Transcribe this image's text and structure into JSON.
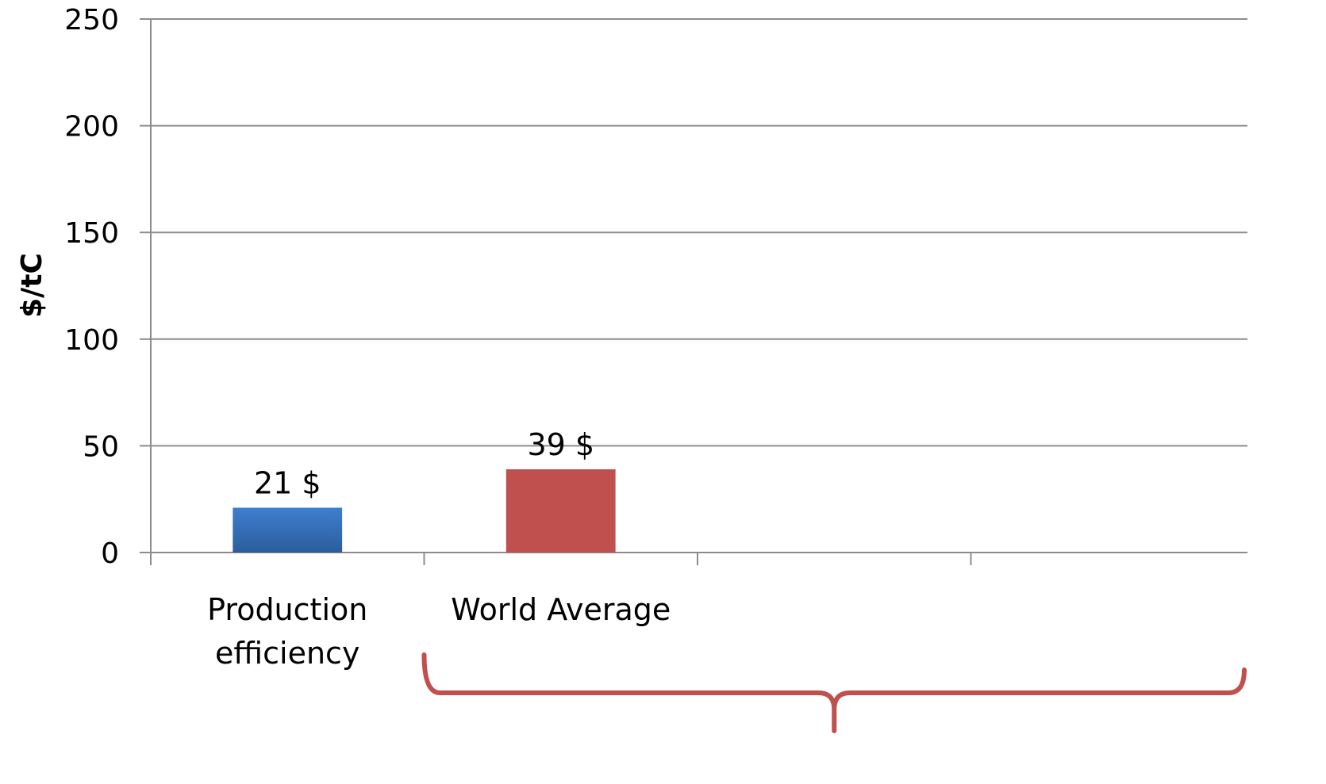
{
  "chart_data": {
    "type": "bar",
    "categories": [
      "Production efficiency",
      "World Average",
      "",
      ""
    ],
    "category_lines": [
      [
        "Production",
        "efficiency"
      ],
      [
        "World Average"
      ],
      [],
      []
    ],
    "values": [
      21,
      39,
      null,
      null
    ],
    "data_labels": [
      "21 $",
      "39 $",
      "",
      ""
    ],
    "bar_colors": [
      "#3a78c3",
      "#c0504d",
      "",
      ""
    ],
    "ylabel": "$/tC",
    "ylim": [
      0,
      250
    ],
    "yticks": [
      0,
      50,
      100,
      150,
      200,
      250
    ],
    "grid": true,
    "legend": "none",
    "bracket_color": "#c0504d"
  }
}
